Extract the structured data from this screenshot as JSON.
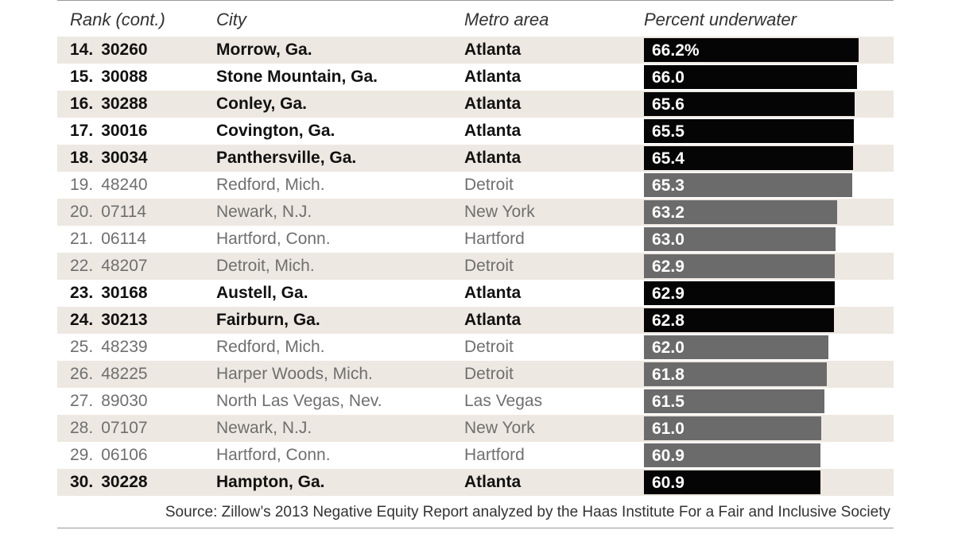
{
  "header": {
    "rank": "Rank (cont.)",
    "city": "City",
    "metro": "Metro area",
    "percent": "Percent underwater"
  },
  "chart_data": {
    "type": "bar",
    "title": "",
    "xlabel": "",
    "ylabel": "Percent underwater",
    "orientation": "horizontal",
    "value_axis_range": [
      0,
      66.2
    ],
    "colors": {
      "atlanta": "#050505",
      "other": "#6b6b6b",
      "row_shade": "#ede8e1"
    },
    "rows": [
      {
        "rank": "14.",
        "zip": "30260",
        "city": "Morrow, Ga.",
        "metro": "Atlanta",
        "value": 66.2,
        "label": "66.2%",
        "highlight": true
      },
      {
        "rank": "15.",
        "zip": "30088",
        "city": "Stone Mountain, Ga.",
        "metro": "Atlanta",
        "value": 66.0,
        "label": "66.0",
        "highlight": true
      },
      {
        "rank": "16.",
        "zip": "30288",
        "city": "Conley, Ga.",
        "metro": "Atlanta",
        "value": 65.6,
        "label": "65.6",
        "highlight": true
      },
      {
        "rank": "17.",
        "zip": "30016",
        "city": "Covington, Ga.",
        "metro": "Atlanta",
        "value": 65.5,
        "label": "65.5",
        "highlight": true
      },
      {
        "rank": "18.",
        "zip": "30034",
        "city": "Panthersville, Ga.",
        "metro": "Atlanta",
        "value": 65.4,
        "label": "65.4",
        "highlight": true
      },
      {
        "rank": "19.",
        "zip": "48240",
        "city": "Redford, Mich.",
        "metro": "Detroit",
        "value": 65.3,
        "label": "65.3",
        "highlight": false
      },
      {
        "rank": "20.",
        "zip": "07114",
        "city": "Newark, N.J.",
        "metro": "New York",
        "value": 63.2,
        "label": "63.2",
        "highlight": false
      },
      {
        "rank": "21.",
        "zip": "06114",
        "city": "Hartford, Conn.",
        "metro": "Hartford",
        "value": 63.0,
        "label": "63.0",
        "highlight": false
      },
      {
        "rank": "22.",
        "zip": "48207",
        "city": "Detroit, Mich.",
        "metro": "Detroit",
        "value": 62.9,
        "label": "62.9",
        "highlight": false
      },
      {
        "rank": "23.",
        "zip": "30168",
        "city": "Austell, Ga.",
        "metro": "Atlanta",
        "value": 62.9,
        "label": "62.9",
        "highlight": true
      },
      {
        "rank": "24.",
        "zip": "30213",
        "city": "Fairburn, Ga.",
        "metro": "Atlanta",
        "value": 62.8,
        "label": "62.8",
        "highlight": true
      },
      {
        "rank": "25.",
        "zip": "48239",
        "city": "Redford, Mich.",
        "metro": "Detroit",
        "value": 62.0,
        "label": "62.0",
        "highlight": false
      },
      {
        "rank": "26.",
        "zip": "48225",
        "city": "Harper Woods, Mich.",
        "metro": "Detroit",
        "value": 61.8,
        "label": "61.8",
        "highlight": false
      },
      {
        "rank": "27.",
        "zip": "89030",
        "city": "North Las Vegas, Nev.",
        "metro": "Las Vegas",
        "value": 61.5,
        "label": "61.5",
        "highlight": false
      },
      {
        "rank": "28.",
        "zip": "07107",
        "city": "Newark, N.J.",
        "metro": "New York",
        "value": 61.0,
        "label": "61.0",
        "highlight": false
      },
      {
        "rank": "29.",
        "zip": "06106",
        "city": "Hartford, Conn.",
        "metro": "Hartford",
        "value": 60.9,
        "label": "60.9",
        "highlight": false
      },
      {
        "rank": "30.",
        "zip": "30228",
        "city": "Hampton, Ga.",
        "metro": "Atlanta",
        "value": 60.9,
        "label": "60.9",
        "highlight": true
      }
    ]
  },
  "source": "Source: Zillow’s 2013 Negative Equity Report analyzed by the Haas Institute For a Fair and Inclusive Society"
}
